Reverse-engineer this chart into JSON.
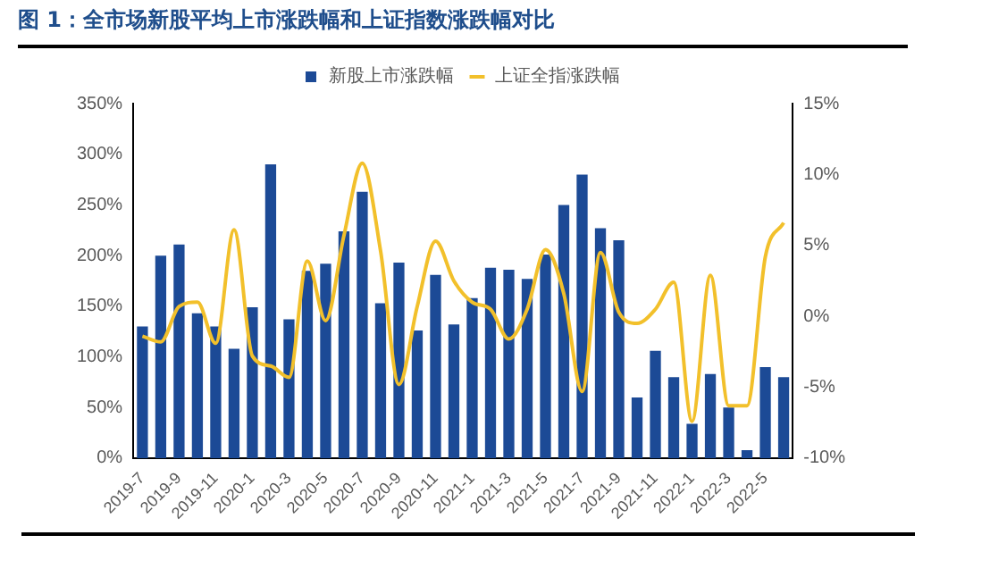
{
  "chart_data": {
    "type": "bar",
    "title": "图 1：全市场新股平均上市涨跌幅和上证指数涨跌幅对比",
    "categories": [
      "2019-7",
      null,
      "2019-9",
      null,
      "2019-11",
      null,
      "2020-1",
      null,
      "2020-3",
      null,
      "2020-5",
      null,
      "2020-7",
      null,
      "2020-9",
      null,
      "2020-11",
      null,
      "2021-1",
      null,
      "2021-3",
      null,
      "2021-5",
      null,
      "2021-7",
      null,
      "2021-9",
      null,
      "2021-11",
      null,
      "2022-1",
      null,
      "2022-3",
      null,
      "2022-5",
      null
    ],
    "series": [
      {
        "name": "新股上市涨跌幅",
        "color": "#1c4a96",
        "values": [
          130,
          200,
          211,
          143,
          130,
          108,
          149,
          290,
          137,
          185,
          192,
          224,
          263,
          153,
          193,
          126,
          181,
          132,
          158,
          188,
          186,
          177,
          201,
          250,
          280,
          227,
          215,
          60,
          106,
          80,
          34,
          83,
          50,
          8,
          90,
          80
        ]
      },
      {
        "name": "上证全指涨跌幅",
        "type": "line",
        "axis": "y2",
        "color": "#f2c02b",
        "values": [
          -1.4,
          -1.8,
          0.7,
          1.0,
          -1.9,
          6.1,
          -2.8,
          -3.5,
          -4.3,
          3.9,
          -0.3,
          5.7,
          10.8,
          4.6,
          -4.8,
          0.7,
          5.3,
          2.5,
          1.0,
          0.5,
          -1.6,
          0.5,
          4.7,
          1.6,
          -5.3,
          4.5,
          0.3,
          -0.5,
          0.5,
          2.4,
          -7.4,
          2.9,
          -6.3,
          -6.3,
          4.2,
          6.6
        ]
      }
    ],
    "ylim": [
      0,
      350
    ],
    "yticks": [
      {
        "value": 0,
        "label": "0%"
      },
      {
        "value": 50,
        "label": "50%"
      },
      {
        "value": 100,
        "label": "100%"
      },
      {
        "value": 150,
        "label": "150%"
      },
      {
        "value": 200,
        "label": "200%"
      },
      {
        "value": 250,
        "label": "250%"
      },
      {
        "value": 300,
        "label": "300%"
      },
      {
        "value": 350,
        "label": "350%"
      }
    ],
    "y2lim": [
      -10,
      15
    ],
    "y2ticks": [
      {
        "value": -10,
        "label": "-10%"
      },
      {
        "value": -5,
        "label": "-5%"
      },
      {
        "value": 0,
        "label": "0%"
      },
      {
        "value": 5,
        "label": "5%"
      },
      {
        "value": 10,
        "label": "10%"
      },
      {
        "value": 15,
        "label": "15%"
      }
    ],
    "grid": false,
    "legend": "top",
    "marker": "none",
    "line_style": "solid"
  }
}
